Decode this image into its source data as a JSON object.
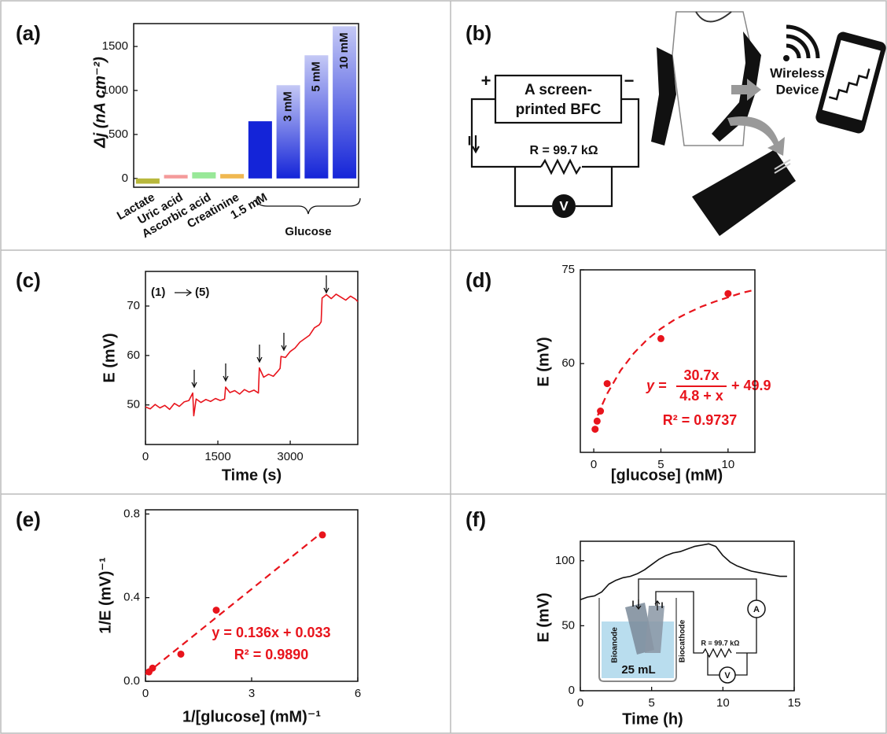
{
  "chart_data": [
    {
      "type": "bar",
      "panel_label": "(a)",
      "ylabel": "Δj (nA cm⁻²)",
      "group_label": "Glucose",
      "categories": [
        "Lactate",
        "Uric acid",
        "Ascorbic acid",
        "Creatinine",
        "1.5 mM",
        "3 mM",
        "5 mM",
        "10 mM"
      ],
      "values": [
        -60,
        40,
        70,
        50,
        650,
        1060,
        1400,
        1730
      ],
      "colors": [
        "#b8b83c",
        "#f49a9a",
        "#98e898",
        "#f0b850",
        "#1424d8",
        "#1424d8",
        "#1424d8",
        "#1424d8"
      ],
      "ylim": [
        -100,
        1760
      ],
      "yticks": [
        0,
        500,
        1000,
        1500
      ]
    },
    {
      "type": "line",
      "panel_label": "(c)",
      "ylabel": "E (mV)",
      "xlabel": "Time (s)",
      "annotation_start": "(1)",
      "annotation_end": "(5)",
      "color": "#e8141c",
      "x": [
        0,
        100,
        200,
        300,
        400,
        500,
        600,
        700,
        800,
        900,
        980,
        1000,
        1050,
        1150,
        1250,
        1350,
        1450,
        1550,
        1640,
        1660,
        1750,
        1850,
        1950,
        2050,
        2150,
        2250,
        2340,
        2360,
        2450,
        2550,
        2650,
        2750,
        2790,
        2810,
        2900,
        3000,
        3100,
        3200,
        3300,
        3400,
        3500,
        3600,
        3640,
        3660,
        3750,
        3850,
        3950,
        4050,
        4150,
        4250,
        4350,
        4400
      ],
      "values": [
        49.6,
        49.2,
        50.1,
        49.4,
        49.9,
        49.1,
        50.3,
        49.7,
        50.6,
        50.9,
        52.4,
        47.8,
        51.2,
        50.5,
        51.1,
        50.7,
        51.3,
        50.9,
        51.2,
        53.6,
        52.5,
        52.9,
        52.2,
        53.1,
        52.6,
        53.0,
        52.4,
        57.5,
        55.6,
        56.2,
        55.8,
        56.9,
        57.4,
        59.8,
        59.6,
        60.8,
        61.5,
        62.7,
        63.4,
        64.1,
        65.6,
        66.2,
        66.8,
        71.6,
        72.3,
        71.5,
        72.4,
        71.8,
        71.2,
        72.0,
        71.4,
        70.9
      ],
      "xlim": [
        0,
        4400
      ],
      "xticks": [
        0,
        1500,
        3000
      ],
      "ylim": [
        42,
        77
      ],
      "yticks": [
        50,
        60,
        70
      ]
    },
    {
      "type": "scatter",
      "panel_label": "(d)",
      "ylabel": "E (mV)",
      "xlabel": "[glucose] (mM)",
      "color": "#e8141c",
      "equation_lhs": "y =",
      "equation_numerator": "30.7x",
      "equation_denominator": "4.8 + x",
      "equation_rhs": "+ 49.9",
      "r_squared": "R² = 0.9737",
      "x": [
        0.1,
        0.25,
        0.5,
        1,
        5,
        10
      ],
      "values": [
        49.5,
        50.8,
        52.4,
        56.8,
        64.0,
        71.2
      ],
      "fit": {
        "x": [
          0.3,
          0.5,
          1,
          2,
          3,
          4,
          5,
          6,
          7,
          8,
          9,
          10,
          11,
          12
        ],
        "values": [
          51.7,
          52.8,
          55.2,
          58.9,
          61.7,
          63.9,
          65.6,
          67.0,
          68.1,
          69.1,
          69.9,
          70.6,
          71.3,
          71.8
        ]
      },
      "xlim": [
        -1,
        12
      ],
      "xticks": [
        0,
        5,
        10
      ],
      "ylim": [
        45.8,
        75
      ],
      "yticks": [
        60,
        75
      ]
    },
    {
      "type": "scatter",
      "panel_label": "(e)",
      "ylabel": "1/E (mV)⁻¹",
      "xlabel": "1/[glucose] (mM)⁻¹",
      "color": "#e8141c",
      "equation": "y = 0.136x + 0.033",
      "r_squared": "R² = 0.9890",
      "x": [
        0.1,
        0.2,
        1,
        2,
        5
      ],
      "values": [
        0.045,
        0.063,
        0.13,
        0.34,
        0.7
      ],
      "fit": {
        "x": [
          0,
          5
        ],
        "values": [
          0.033,
          0.713
        ]
      },
      "xlim": [
        0,
        6
      ],
      "xticks": [
        0,
        3,
        6
      ],
      "ylim": [
        0,
        0.82
      ],
      "yticks": [
        {
          "value": 0,
          "label": "0.0"
        },
        0.4,
        0.8
      ]
    },
    {
      "type": "line",
      "panel_label": "(f)",
      "ylabel": "E (mV)",
      "xlabel": "Time (h)",
      "color": "#111111",
      "x": [
        0,
        0.5,
        1,
        1.5,
        2,
        2.5,
        3,
        3.5,
        4,
        4.5,
        5,
        5.5,
        6,
        6.5,
        7,
        7.5,
        8,
        8.5,
        9,
        9.5,
        10,
        10.5,
        11,
        11.5,
        12,
        12.5,
        13,
        13.5,
        14,
        14.5
      ],
      "values": [
        70,
        72,
        73,
        76,
        82,
        85,
        87,
        88,
        90,
        93,
        97,
        101,
        104,
        106,
        107,
        109,
        111,
        112,
        113,
        111,
        104,
        99,
        96,
        94,
        92,
        91,
        90,
        89,
        88,
        88
      ],
      "xlim": [
        0,
        15
      ],
      "xticks": [
        0,
        5,
        10,
        15
      ],
      "ylim": [
        0,
        115
      ],
      "yticks": [
        0,
        50,
        100
      ],
      "inset": {
        "anode": "Bioanode",
        "cathode": "Biocathode",
        "volume": "25 mL",
        "resistor": "R = 99.7 kΩ",
        "ammeter": "A",
        "voltmeter": "V",
        "current_in": "I",
        "current_out": "I"
      }
    }
  ],
  "diagram": {
    "panel_label": "(b)",
    "plus": "+",
    "minus": "−",
    "bfc_line1": "A screen-",
    "bfc_line2": "printed BFC",
    "resistor": "R = 99.7 kΩ",
    "voltmeter": "V",
    "current": "I",
    "device_line1": "Wireless",
    "device_line2": "Device"
  }
}
